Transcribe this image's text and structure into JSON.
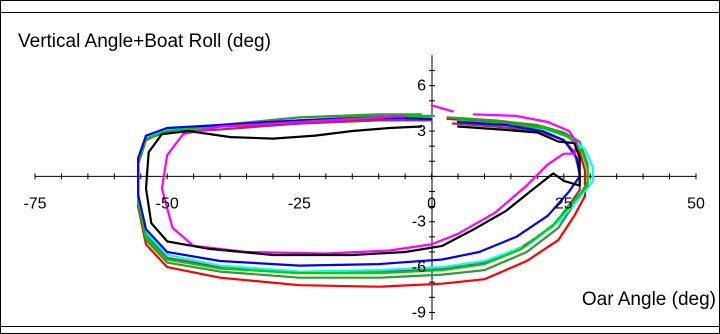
{
  "chart_data": {
    "type": "line",
    "ylabel": "Vertical Angle+Boat Roll (deg)",
    "xlabel": "Oar Angle (deg)",
    "xlim": [
      -75,
      50
    ],
    "ylim": [
      -9.5,
      7.5
    ],
    "x_ticks": [
      -75,
      -50,
      -25,
      0,
      25,
      50
    ],
    "y_ticks": [
      -9,
      -6,
      -3,
      3,
      6
    ],
    "grid": false,
    "legend": "none",
    "series": [
      {
        "color": "#ff0000",
        "points": [
          [
            29,
            -1.3
          ],
          [
            27,
            -2.6
          ],
          [
            24,
            -4.2
          ],
          [
            18,
            -5.6
          ],
          [
            10,
            -6.8
          ],
          [
            2,
            -7.1
          ],
          [
            -10,
            -7.3
          ],
          [
            -25,
            -7.2
          ],
          [
            -40,
            -6.7
          ],
          [
            -50,
            -6.0
          ],
          [
            -54,
            -4.5
          ],
          [
            -55.5,
            -2.0
          ],
          [
            -55.5,
            0.8
          ],
          [
            -54,
            2.4
          ],
          [
            -50,
            3.1
          ],
          [
            -40,
            3.3
          ],
          [
            -25,
            3.5
          ],
          [
            -10,
            3.8
          ],
          [
            0,
            3.9
          ]
        ]
      },
      {
        "color": "#ff0000",
        "points": [
          [
            3,
            3.8
          ],
          [
            12,
            3.6
          ],
          [
            20,
            3.3
          ],
          [
            25,
            2.8
          ],
          [
            27.5,
            2.2
          ],
          [
            29,
            0.4
          ],
          [
            29,
            -1.3
          ]
        ]
      },
      {
        "color": "#339933",
        "points": [
          [
            29.5,
            -0.4
          ],
          [
            27,
            -1.8
          ],
          [
            24,
            -3.4
          ],
          [
            18,
            -5.0
          ],
          [
            10,
            -6.2
          ],
          [
            2,
            -6.5
          ],
          [
            -10,
            -6.7
          ],
          [
            -25,
            -6.7
          ],
          [
            -40,
            -6.3
          ],
          [
            -50,
            -5.7
          ],
          [
            -54,
            -4.2
          ],
          [
            -55.5,
            -1.8
          ],
          [
            -55.5,
            0.9
          ],
          [
            -54,
            2.5
          ],
          [
            -50,
            3.1
          ],
          [
            -40,
            3.4
          ],
          [
            -25,
            3.9
          ],
          [
            -10,
            4.1
          ],
          [
            -2,
            4.1
          ]
        ]
      },
      {
        "color": "#339933",
        "points": [
          [
            3,
            3.9
          ],
          [
            12,
            3.7
          ],
          [
            20,
            3.4
          ],
          [
            25,
            2.9
          ],
          [
            28,
            2.3
          ],
          [
            29.5,
            0.8
          ],
          [
            29.5,
            -0.4
          ]
        ]
      },
      {
        "color": "#993366",
        "points": [
          [
            28,
            -0.9
          ],
          [
            26,
            -1.9
          ],
          [
            23,
            -3.3
          ],
          [
            17,
            -4.7
          ],
          [
            10,
            -5.7
          ],
          [
            2,
            -6.1
          ],
          [
            -10,
            -6.3
          ],
          [
            -25,
            -6.3
          ],
          [
            -40,
            -6.0
          ],
          [
            -50,
            -5.4
          ],
          [
            -54,
            -3.9
          ],
          [
            -55.5,
            -1.5
          ],
          [
            -55.5,
            1.0
          ],
          [
            -54,
            2.5
          ],
          [
            -50,
            2.9
          ],
          [
            -40,
            3.1
          ],
          [
            -25,
            3.5
          ],
          [
            -10,
            3.7
          ],
          [
            0,
            3.7
          ]
        ]
      },
      {
        "color": "#993366",
        "points": [
          [
            4,
            3.5
          ],
          [
            12,
            3.3
          ],
          [
            20,
            3.0
          ],
          [
            25,
            2.4
          ],
          [
            27,
            1.6
          ],
          [
            28,
            0.2
          ],
          [
            28,
            -0.9
          ]
        ]
      },
      {
        "color": "#00ffff",
        "points": [
          [
            30.5,
            -0.3
          ],
          [
            28,
            -1.4
          ],
          [
            24,
            -3.0
          ],
          [
            18,
            -4.6
          ],
          [
            10,
            -5.6
          ],
          [
            2,
            -6.0
          ],
          [
            -10,
            -6.2
          ],
          [
            -25,
            -6.3
          ],
          [
            -40,
            -5.9
          ],
          [
            -50,
            -5.2
          ],
          [
            -54,
            -3.7
          ],
          [
            -55.5,
            -1.4
          ],
          [
            -55.5,
            1.0
          ],
          [
            -54,
            2.6
          ],
          [
            -50,
            3.1
          ],
          [
            -40,
            3.3
          ],
          [
            -25,
            3.7
          ],
          [
            -10,
            3.9
          ],
          [
            0,
            3.9
          ]
        ]
      },
      {
        "color": "#00ffff",
        "points": [
          [
            6,
            3.6
          ],
          [
            14,
            3.4
          ],
          [
            21,
            3.2
          ],
          [
            26,
            2.6
          ],
          [
            29,
            1.8
          ],
          [
            30.5,
            0.6
          ],
          [
            30.5,
            -0.3
          ]
        ]
      },
      {
        "color": "#00cc00",
        "points": [
          [
            29.5,
            -0.6
          ],
          [
            27,
            -1.6
          ],
          [
            23,
            -3.2
          ],
          [
            17,
            -4.8
          ],
          [
            10,
            -5.8
          ],
          [
            2,
            -6.2
          ],
          [
            -10,
            -6.4
          ],
          [
            -25,
            -6.4
          ],
          [
            -40,
            -6.1
          ],
          [
            -50,
            -5.5
          ],
          [
            -54,
            -4.0
          ],
          [
            -55.5,
            -1.6
          ],
          [
            -55.5,
            0.9
          ],
          [
            -54,
            2.5
          ],
          [
            -50,
            3.0
          ],
          [
            -40,
            3.3
          ],
          [
            -25,
            3.7
          ],
          [
            -10,
            4.0
          ],
          [
            0,
            4.0
          ]
        ]
      },
      {
        "color": "#00cc00",
        "points": [
          [
            5,
            3.7
          ],
          [
            13,
            3.5
          ],
          [
            21,
            3.2
          ],
          [
            26,
            2.6
          ],
          [
            28.5,
            1.6
          ],
          [
            29.5,
            0.5
          ],
          [
            29.5,
            -0.6
          ]
        ]
      },
      {
        "color": "#0000ff",
        "points": [
          [
            28,
            0.0
          ],
          [
            26,
            -1.0
          ],
          [
            22,
            -2.6
          ],
          [
            16,
            -4.0
          ],
          [
            9,
            -5.0
          ],
          [
            2,
            -5.5
          ],
          [
            -10,
            -5.8
          ],
          [
            -25,
            -5.9
          ],
          [
            -40,
            -5.6
          ],
          [
            -50,
            -5.0
          ],
          [
            -54,
            -3.5
          ],
          [
            -55.5,
            -1.2
          ],
          [
            -55.5,
            1.2
          ],
          [
            -54,
            2.7
          ],
          [
            -50,
            3.2
          ],
          [
            -40,
            3.4
          ],
          [
            -25,
            3.7
          ],
          [
            -10,
            3.9
          ],
          [
            0,
            3.8
          ]
        ]
      },
      {
        "color": "#0000ff",
        "points": [
          [
            5,
            3.6
          ],
          [
            14,
            3.4
          ],
          [
            21,
            3.0
          ],
          [
            25,
            2.4
          ],
          [
            27.5,
            1.2
          ],
          [
            28,
            0.0
          ]
        ]
      },
      {
        "color": "#ff00ff",
        "points": [
          [
            27,
            1.5
          ],
          [
            25,
            1.5
          ],
          [
            22,
            0.8
          ],
          [
            18,
            -0.6
          ],
          [
            12,
            -2.4
          ],
          [
            5,
            -3.8
          ],
          [
            0,
            -4.5
          ],
          [
            -8,
            -4.9
          ],
          [
            -20,
            -5.1
          ],
          [
            -35,
            -5.0
          ],
          [
            -45,
            -4.6
          ],
          [
            -49,
            -3.4
          ],
          [
            -51,
            -0.8
          ],
          [
            -50,
            1.4
          ],
          [
            -47,
            2.8
          ],
          [
            -40,
            3.3
          ],
          [
            -25,
            3.6
          ],
          [
            -10,
            3.9
          ],
          [
            -5,
            4.0
          ]
        ]
      },
      {
        "color": "#ff00ff",
        "points": [
          [
            0,
            4.7
          ],
          [
            4,
            4.3
          ]
        ]
      },
      {
        "color": "#ff00ff",
        "points": [
          [
            8,
            4.1
          ],
          [
            16,
            4.0
          ],
          [
            22,
            3.6
          ],
          [
            26,
            3.0
          ],
          [
            27.5,
            2.2
          ],
          [
            27,
            1.5
          ]
        ]
      },
      {
        "color": "#000000",
        "points": [
          [
            28,
            -0.6
          ],
          [
            25,
            -0.3
          ],
          [
            23,
            0.2
          ],
          [
            19,
            -0.9
          ],
          [
            14,
            -2.3
          ],
          [
            8,
            -3.5
          ],
          [
            2,
            -4.6
          ],
          [
            -5,
            -5.0
          ],
          [
            -15,
            -5.2
          ],
          [
            -30,
            -5.2
          ],
          [
            -42,
            -4.8
          ],
          [
            -50,
            -4.3
          ],
          [
            -53,
            -3.1
          ],
          [
            -54,
            -0.8
          ],
          [
            -53.5,
            1.6
          ],
          [
            -51,
            2.8
          ],
          [
            -46,
            3.0
          ],
          [
            -38,
            2.6
          ],
          [
            -30,
            2.5
          ],
          [
            -22,
            2.7
          ],
          [
            -15,
            3.0
          ],
          [
            -8,
            3.2
          ],
          [
            -2,
            3.3
          ]
        ]
      },
      {
        "color": "#000000",
        "points": [
          [
            5,
            3.3
          ],
          [
            13,
            3.1
          ],
          [
            20,
            2.9
          ],
          [
            24,
            2.3
          ],
          [
            27,
            2.2
          ],
          [
            28,
            1.2
          ],
          [
            28,
            -0.6
          ]
        ]
      }
    ]
  }
}
